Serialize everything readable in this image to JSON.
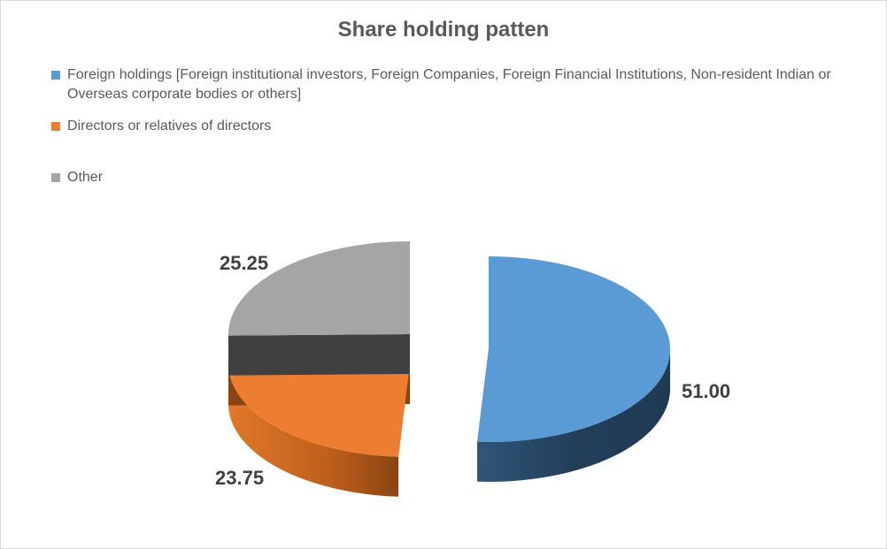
{
  "chart_data": {
    "type": "pie",
    "title": "Share holding patten",
    "legend_placement": "top-left",
    "categories": [
      "Foreign holdings [Foreign institutional investors, Foreign Companies, Foreign Financial Institutions, Non-resident Indian or Overseas corporate bodies or others]",
      "Directors or relatives of directors",
      "Other"
    ],
    "values": [
      51.0,
      23.75,
      25.25
    ],
    "data_labels": [
      "51.00",
      "23.75",
      "25.25"
    ],
    "colors": [
      "#5b9bd5",
      "#ed7d31",
      "#a5a5a5"
    ],
    "style": "3d-exploded"
  }
}
